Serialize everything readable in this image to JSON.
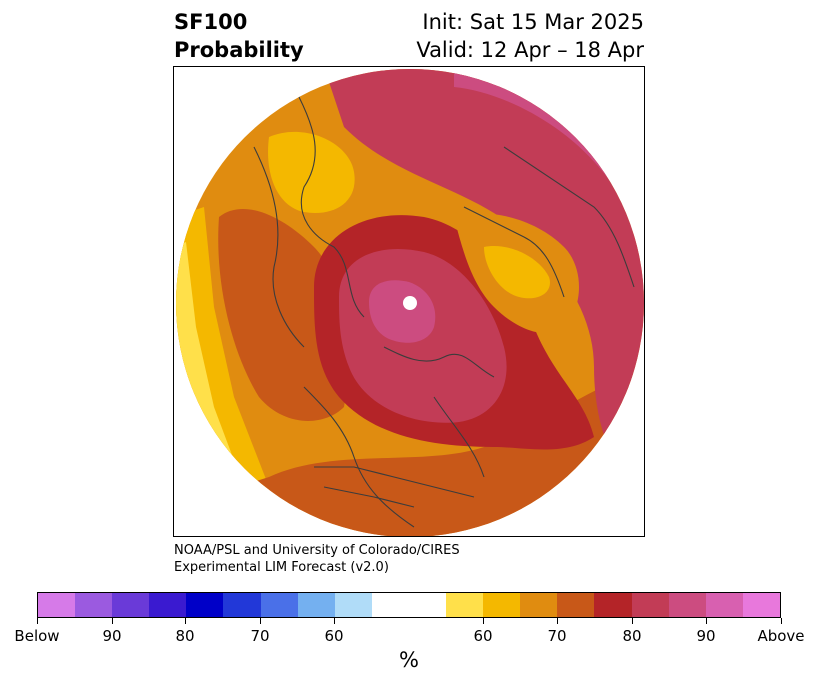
{
  "header": {
    "variable": "SF100",
    "subtitle": "Probability",
    "init": "Init: Sat 15 Mar 2025",
    "valid": "Valid: 12 Apr – 18 Apr"
  },
  "credit": {
    "line1": "NOAA/PSL and University of Colorado/CIRES",
    "line2": "Experimental LIM Forecast (v2.0)"
  },
  "colorbar": {
    "unit": "%",
    "colors": [
      "#d67ae8",
      "#9b5ae0",
      "#6a3ad8",
      "#3a1ad0",
      "#0000c8",
      "#2238d8",
      "#4a70e8",
      "#74b0f0",
      "#b0dcf8",
      "#ffffff",
      "#ffe04a",
      "#f4b800",
      "#e08c10",
      "#c85818",
      "#b42428",
      "#c23c56",
      "#cc4c80",
      "#d860b0",
      "#e878dc"
    ],
    "tick_labels": [
      "Below",
      "90",
      "80",
      "70",
      "60",
      "60",
      "70",
      "80",
      "90",
      "Above"
    ]
  },
  "map": {
    "projection": "polar stereographic",
    "colors": {
      "c50": "#ffe04a",
      "c55": "#f4b800",
      "c60": "#e08c10",
      "c65": "#c85818",
      "c70": "#b42428",
      "c75": "#c23c56",
      "c80": "#cc4c80",
      "border": "#3c3c3c"
    }
  }
}
